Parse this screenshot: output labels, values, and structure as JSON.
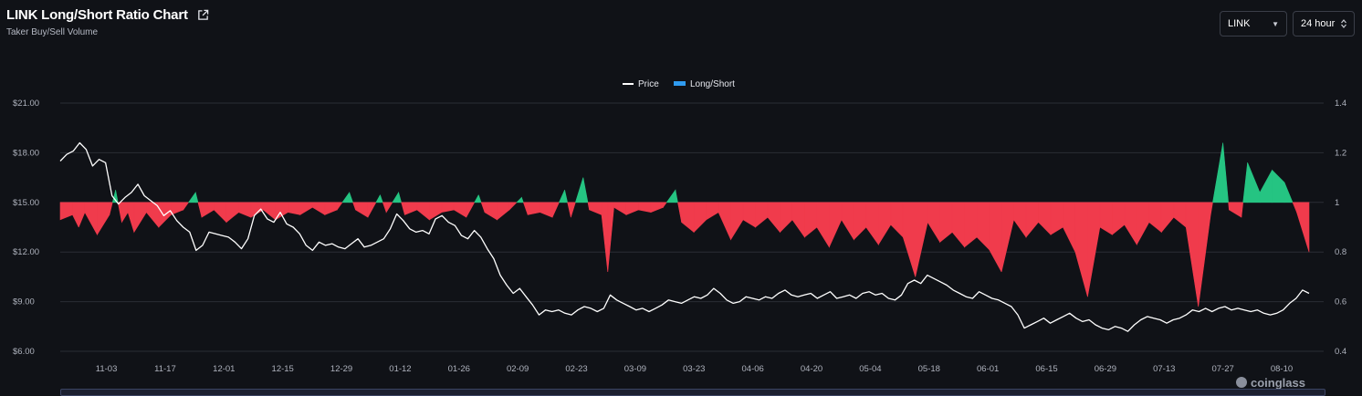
{
  "header": {
    "title": "LINK Long/Short Ratio Chart",
    "subtitle": "Taker Buy/Sell Volume",
    "external_link_icon": "external-link-icon"
  },
  "controls": {
    "coin_value": "LINK",
    "coin_caret": "▼",
    "range_value": "24 hour"
  },
  "watermark": "coinglass",
  "colors": {
    "price_line": "#ffffff",
    "long_short_legend": "#2f9bf0",
    "positive": "#25c482",
    "negative": "#f03b4c",
    "background": "#101217",
    "grid": "#2a2d35"
  },
  "chart_data": {
    "type": "line+area",
    "legend": [
      "Price",
      "Long/Short"
    ],
    "legend_position": "top-center",
    "grid": true,
    "y_left": {
      "ticks": [
        "$6.00",
        "$9.00",
        "$12.00",
        "$15.00",
        "$18.00",
        "$21.00"
      ],
      "range": [
        6,
        21
      ]
    },
    "y_right": {
      "ticks": [
        "0.4",
        "0.6",
        "0.8",
        "1",
        "1.2",
        "1.4"
      ],
      "range": [
        0.4,
        1.4
      ],
      "baseline": 1
    },
    "x_ticks": [
      "11-03",
      "11-17",
      "12-01",
      "12-15",
      "12-29",
      "01-12",
      "01-26",
      "02-09",
      "02-23",
      "03-09",
      "03-23",
      "04-06",
      "04-20",
      "05-04",
      "05-18",
      "06-01",
      "06-15",
      "06-29",
      "07-13",
      "07-27",
      "08-10"
    ],
    "x_tick_days": [
      11,
      25,
      39,
      53,
      67,
      81,
      95,
      109,
      123,
      137,
      151,
      165,
      179,
      193,
      207,
      221,
      235,
      249,
      263,
      277,
      291
    ],
    "x_range_days": [
      0,
      301
    ],
    "price": [
      [
        0,
        17.5
      ],
      [
        1,
        17.9
      ],
      [
        2,
        18.1
      ],
      [
        3,
        18.6
      ],
      [
        4,
        18.2
      ],
      [
        5,
        17.2
      ],
      [
        6,
        17.6
      ],
      [
        7,
        17.4
      ],
      [
        8,
        15.4
      ],
      [
        9,
        14.9
      ],
      [
        10,
        15.3
      ],
      [
        11,
        15.6
      ],
      [
        12,
        16.1
      ],
      [
        13,
        15.4
      ],
      [
        14,
        15.1
      ],
      [
        15,
        14.8
      ],
      [
        16,
        14.2
      ],
      [
        17,
        14.5
      ],
      [
        18,
        13.9
      ],
      [
        19,
        13.5
      ],
      [
        20,
        13.2
      ],
      [
        21,
        12.1
      ],
      [
        22,
        12.4
      ],
      [
        23,
        13.2
      ],
      [
        24,
        13.1
      ],
      [
        25,
        13.0
      ],
      [
        26,
        12.9
      ],
      [
        27,
        12.6
      ],
      [
        28,
        12.2
      ],
      [
        29,
        12.8
      ],
      [
        30,
        14.2
      ],
      [
        31,
        14.6
      ],
      [
        32,
        14.0
      ],
      [
        33,
        13.8
      ],
      [
        34,
        14.4
      ],
      [
        35,
        13.7
      ],
      [
        36,
        13.5
      ],
      [
        37,
        13.1
      ],
      [
        38,
        12.4
      ],
      [
        39,
        12.1
      ],
      [
        40,
        12.6
      ],
      [
        41,
        12.4
      ],
      [
        42,
        12.5
      ],
      [
        43,
        12.3
      ],
      [
        44,
        12.2
      ],
      [
        45,
        12.5
      ],
      [
        46,
        12.8
      ],
      [
        47,
        12.3
      ],
      [
        48,
        12.4
      ],
      [
        49,
        12.6
      ],
      [
        50,
        12.8
      ],
      [
        51,
        13.4
      ],
      [
        52,
        14.3
      ],
      [
        53,
        13.9
      ],
      [
        54,
        13.4
      ],
      [
        55,
        13.2
      ],
      [
        56,
        13.3
      ],
      [
        57,
        13.1
      ],
      [
        58,
        14.0
      ],
      [
        59,
        14.2
      ],
      [
        60,
        13.8
      ],
      [
        61,
        13.6
      ],
      [
        62,
        13.0
      ],
      [
        63,
        12.8
      ],
      [
        64,
        13.3
      ],
      [
        65,
        12.9
      ],
      [
        66,
        12.2
      ],
      [
        67,
        11.6
      ],
      [
        68,
        10.6
      ],
      [
        69,
        10.0
      ],
      [
        70,
        9.5
      ],
      [
        71,
        9.8
      ],
      [
        72,
        9.3
      ],
      [
        73,
        8.8
      ],
      [
        74,
        8.2
      ],
      [
        75,
        8.5
      ],
      [
        76,
        8.4
      ],
      [
        77,
        8.5
      ],
      [
        78,
        8.3
      ],
      [
        79,
        8.2
      ],
      [
        80,
        8.5
      ],
      [
        81,
        8.7
      ],
      [
        82,
        8.6
      ],
      [
        83,
        8.4
      ],
      [
        84,
        8.6
      ],
      [
        85,
        9.4
      ],
      [
        86,
        9.1
      ],
      [
        87,
        8.9
      ],
      [
        88,
        8.7
      ],
      [
        89,
        8.5
      ],
      [
        90,
        8.6
      ],
      [
        91,
        8.4
      ],
      [
        92,
        8.6
      ],
      [
        93,
        8.8
      ],
      [
        94,
        9.1
      ],
      [
        95,
        9.0
      ],
      [
        96,
        8.9
      ],
      [
        97,
        9.1
      ],
      [
        98,
        9.3
      ],
      [
        99,
        9.2
      ],
      [
        100,
        9.4
      ],
      [
        101,
        9.8
      ],
      [
        102,
        9.5
      ],
      [
        103,
        9.1
      ],
      [
        104,
        8.9
      ],
      [
        105,
        9.0
      ],
      [
        106,
        9.3
      ],
      [
        107,
        9.2
      ],
      [
        108,
        9.1
      ],
      [
        109,
        9.3
      ],
      [
        110,
        9.2
      ],
      [
        111,
        9.5
      ],
      [
        112,
        9.7
      ],
      [
        113,
        9.4
      ],
      [
        114,
        9.3
      ],
      [
        115,
        9.4
      ],
      [
        116,
        9.5
      ],
      [
        117,
        9.2
      ],
      [
        118,
        9.4
      ],
      [
        119,
        9.6
      ],
      [
        120,
        9.2
      ],
      [
        121,
        9.3
      ],
      [
        122,
        9.4
      ],
      [
        123,
        9.2
      ],
      [
        124,
        9.5
      ],
      [
        125,
        9.6
      ],
      [
        126,
        9.4
      ],
      [
        127,
        9.5
      ],
      [
        128,
        9.2
      ],
      [
        129,
        9.1
      ],
      [
        130,
        9.4
      ],
      [
        131,
        10.1
      ],
      [
        132,
        10.3
      ],
      [
        133,
        10.1
      ],
      [
        134,
        10.6
      ],
      [
        135,
        10.4
      ],
      [
        136,
        10.2
      ],
      [
        137,
        10.0
      ],
      [
        138,
        9.7
      ],
      [
        139,
        9.5
      ],
      [
        140,
        9.3
      ],
      [
        141,
        9.2
      ],
      [
        142,
        9.6
      ],
      [
        143,
        9.4
      ],
      [
        144,
        9.2
      ],
      [
        145,
        9.1
      ],
      [
        146,
        8.9
      ],
      [
        147,
        8.7
      ],
      [
        148,
        8.2
      ],
      [
        149,
        7.4
      ],
      [
        150,
        7.6
      ],
      [
        151,
        7.8
      ],
      [
        152,
        8.0
      ],
      [
        153,
        7.7
      ],
      [
        154,
        7.9
      ],
      [
        155,
        8.1
      ],
      [
        156,
        8.3
      ],
      [
        157,
        8.0
      ],
      [
        158,
        7.8
      ],
      [
        159,
        7.9
      ],
      [
        160,
        7.6
      ],
      [
        161,
        7.4
      ],
      [
        162,
        7.3
      ],
      [
        163,
        7.5
      ],
      [
        164,
        7.4
      ],
      [
        165,
        7.2
      ],
      [
        166,
        7.6
      ],
      [
        167,
        7.9
      ],
      [
        168,
        8.1
      ],
      [
        169,
        8.0
      ],
      [
        170,
        7.9
      ],
      [
        171,
        7.7
      ],
      [
        172,
        7.9
      ],
      [
        173,
        8.0
      ],
      [
        174,
        8.2
      ],
      [
        175,
        8.5
      ],
      [
        176,
        8.4
      ],
      [
        177,
        8.6
      ],
      [
        178,
        8.4
      ],
      [
        179,
        8.6
      ],
      [
        180,
        8.7
      ],
      [
        181,
        8.5
      ],
      [
        182,
        8.6
      ],
      [
        183,
        8.5
      ],
      [
        184,
        8.4
      ],
      [
        185,
        8.5
      ],
      [
        186,
        8.3
      ],
      [
        187,
        8.2
      ],
      [
        188,
        8.3
      ],
      [
        189,
        8.5
      ],
      [
        190,
        8.9
      ],
      [
        191,
        9.2
      ],
      [
        192,
        9.7
      ],
      [
        193,
        9.5
      ]
    ],
    "long_short": [
      [
        0,
        0.93
      ],
      [
        2,
        0.95
      ],
      [
        3,
        0.9
      ],
      [
        4,
        0.96
      ],
      [
        6,
        0.87
      ],
      [
        8,
        0.95
      ],
      [
        9,
        1.05
      ],
      [
        10,
        0.92
      ],
      [
        11,
        0.96
      ],
      [
        12,
        0.88
      ],
      [
        14,
        0.96
      ],
      [
        16,
        0.9
      ],
      [
        18,
        0.95
      ],
      [
        20,
        0.97
      ],
      [
        22,
        1.04
      ],
      [
        23,
        0.94
      ],
      [
        25,
        0.97
      ],
      [
        27,
        0.92
      ],
      [
        29,
        0.96
      ],
      [
        31,
        0.94
      ],
      [
        33,
        0.97
      ],
      [
        35,
        0.93
      ],
      [
        37,
        0.96
      ],
      [
        39,
        0.95
      ],
      [
        41,
        0.98
      ],
      [
        43,
        0.95
      ],
      [
        45,
        0.97
      ],
      [
        47,
        1.04
      ],
      [
        48,
        0.97
      ],
      [
        50,
        0.94
      ],
      [
        52,
        1.03
      ],
      [
        53,
        0.96
      ],
      [
        55,
        1.04
      ],
      [
        56,
        0.95
      ],
      [
        58,
        0.97
      ],
      [
        60,
        0.93
      ],
      [
        62,
        0.96
      ],
      [
        64,
        0.97
      ],
      [
        66,
        0.94
      ],
      [
        68,
        1.03
      ],
      [
        69,
        0.96
      ],
      [
        71,
        0.93
      ],
      [
        73,
        0.97
      ],
      [
        75,
        1.02
      ],
      [
        76,
        0.95
      ],
      [
        78,
        0.96
      ],
      [
        80,
        0.94
      ],
      [
        82,
        1.05
      ],
      [
        83,
        0.94
      ],
      [
        85,
        1.1
      ],
      [
        86,
        0.97
      ],
      [
        88,
        0.95
      ],
      [
        89,
        0.72
      ],
      [
        90,
        0.98
      ],
      [
        92,
        0.95
      ],
      [
        94,
        0.97
      ],
      [
        96,
        0.96
      ],
      [
        98,
        0.98
      ],
      [
        100,
        1.05
      ],
      [
        101,
        0.92
      ],
      [
        103,
        0.88
      ],
      [
        105,
        0.93
      ],
      [
        107,
        0.96
      ],
      [
        109,
        0.85
      ],
      [
        111,
        0.93
      ],
      [
        113,
        0.9
      ],
      [
        115,
        0.94
      ],
      [
        117,
        0.88
      ],
      [
        119,
        0.93
      ],
      [
        121,
        0.86
      ],
      [
        123,
        0.9
      ],
      [
        125,
        0.82
      ],
      [
        127,
        0.93
      ],
      [
        129,
        0.85
      ],
      [
        131,
        0.9
      ],
      [
        133,
        0.83
      ],
      [
        135,
        0.91
      ],
      [
        137,
        0.86
      ],
      [
        139,
        0.7
      ],
      [
        141,
        0.92
      ],
      [
        143,
        0.84
      ],
      [
        145,
        0.88
      ],
      [
        147,
        0.82
      ],
      [
        149,
        0.86
      ],
      [
        151,
        0.81
      ],
      [
        153,
        0.72
      ],
      [
        155,
        0.93
      ],
      [
        157,
        0.86
      ],
      [
        159,
        0.92
      ],
      [
        161,
        0.87
      ],
      [
        163,
        0.9
      ],
      [
        165,
        0.8
      ],
      [
        167,
        0.62
      ],
      [
        169,
        0.9
      ],
      [
        171,
        0.87
      ],
      [
        173,
        0.91
      ],
      [
        175,
        0.83
      ],
      [
        177,
        0.92
      ],
      [
        179,
        0.88
      ],
      [
        181,
        0.94
      ],
      [
        183,
        0.9
      ],
      [
        185,
        0.58
      ],
      [
        187,
        0.95
      ],
      [
        189,
        1.24
      ],
      [
        190,
        0.97
      ],
      [
        192,
        0.94
      ],
      [
        193,
        1.16
      ],
      [
        195,
        1.04
      ],
      [
        197,
        1.13
      ],
      [
        199,
        1.08
      ],
      [
        201,
        0.96
      ],
      [
        203,
        0.8
      ]
    ]
  }
}
